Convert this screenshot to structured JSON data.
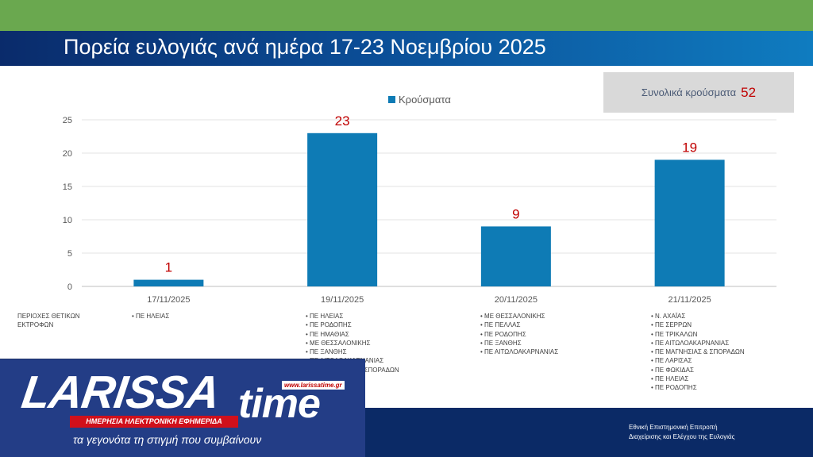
{
  "title": "Πορεία ευλογιάς ανά ημέρα 17-23 Νοεμβρίου 2025",
  "total": {
    "label": "Συνολικά κρούσματα",
    "value": "52"
  },
  "colors": {
    "bar": "#0e7bb5",
    "data_label": "#c00000",
    "top_band": "#6aa84f",
    "footer": "#0b2a66"
  },
  "chart_data": {
    "type": "bar",
    "categories": [
      "17/11/2025",
      "19/11/2025",
      "20/11/2025",
      "21/11/2025"
    ],
    "series": [
      {
        "name": "Κρούσματα",
        "values": [
          1,
          23,
          9,
          19
        ]
      }
    ],
    "data_labels": [
      "1",
      "23",
      "9",
      "19"
    ],
    "yticks": [
      0,
      5,
      10,
      15,
      20,
      25
    ],
    "ylim": [
      0,
      25
    ],
    "grid": true,
    "legend": "top-center"
  },
  "areas": {
    "label": "ΠΕΡΙΟΧΕΣ ΘΕΤΙΚΩΝ ΕΚΤΡΟΦΩΝ",
    "columns": [
      [
        "ΠΕ ΗΛΕΙΑΣ"
      ],
      [
        "ΠΕ ΗΛΕΙΑΣ",
        "ΠΕ ΡΟΔΟΠΗΣ",
        "ΠΕ ΗΜΑΘΙΑΣ",
        "ΜΕ ΘΕΣΣΑΛΟΝΙΚΗΣ",
        "ΠΕ ΞΑΝΘΗΣ",
        "ΠΕ ΑΙΤΩΛΟΑΚΑΡΝΑΝΙΑΣ",
        "ΠΕ ΜΑΓΝΗΣΙΑΣ & ΣΠΟΡΑΔΩΝ"
      ],
      [
        "ΜΕ ΘΕΣΣΑΛΟΝΙΚΗΣ",
        "ΠΕ ΠΕΛΛΑΣ",
        "ΠΕ ΡΟΔΟΠΗΣ",
        "ΠΕ ΞΑΝΘΗΣ",
        "ΠΕ ΑΙΤΩΛΟΑΚΑΡΝΑΝΙΑΣ"
      ],
      [
        "Ν. ΑΧΑΪΑΣ",
        "ΠΕ ΣΕΡΡΩΝ",
        "ΠΕ ΤΡΙΚΑΛΩΝ",
        "ΠΕ ΑΙΤΩΛΟΑΚΑΡΝΑΝΙΑΣ",
        "ΠΕ ΜΑΓΝΗΣΙΑΣ & ΣΠΟΡΑΔΩΝ",
        "ΠΕ ΛΑΡΙΣΑΣ",
        "ΠΕ ΦΩΚΙΔΑΣ",
        "ΠΕ ΗΛΕΙΑΣ",
        "ΠΕ ΡΟΔΟΠΗΣ"
      ]
    ]
  },
  "footer": {
    "org_line1": "Εθνική Επιστημονική Επιτροπή",
    "org_line2": "Διαχείρισης και Ελέγχου της Ευλογιάς"
  },
  "logo": {
    "word1": "LARISSA",
    "word2": "time",
    "url": "www.larissatime.gr",
    "subtitle": "ΗΜΕΡΗΣΙΑ ΗΛΕΚΤΡΟΝΙΚΗ ΕΦΗΜΕΡΙΔΑ",
    "tagline": "τα γεγονότα τη στιγμή που συμβαίνουν"
  }
}
